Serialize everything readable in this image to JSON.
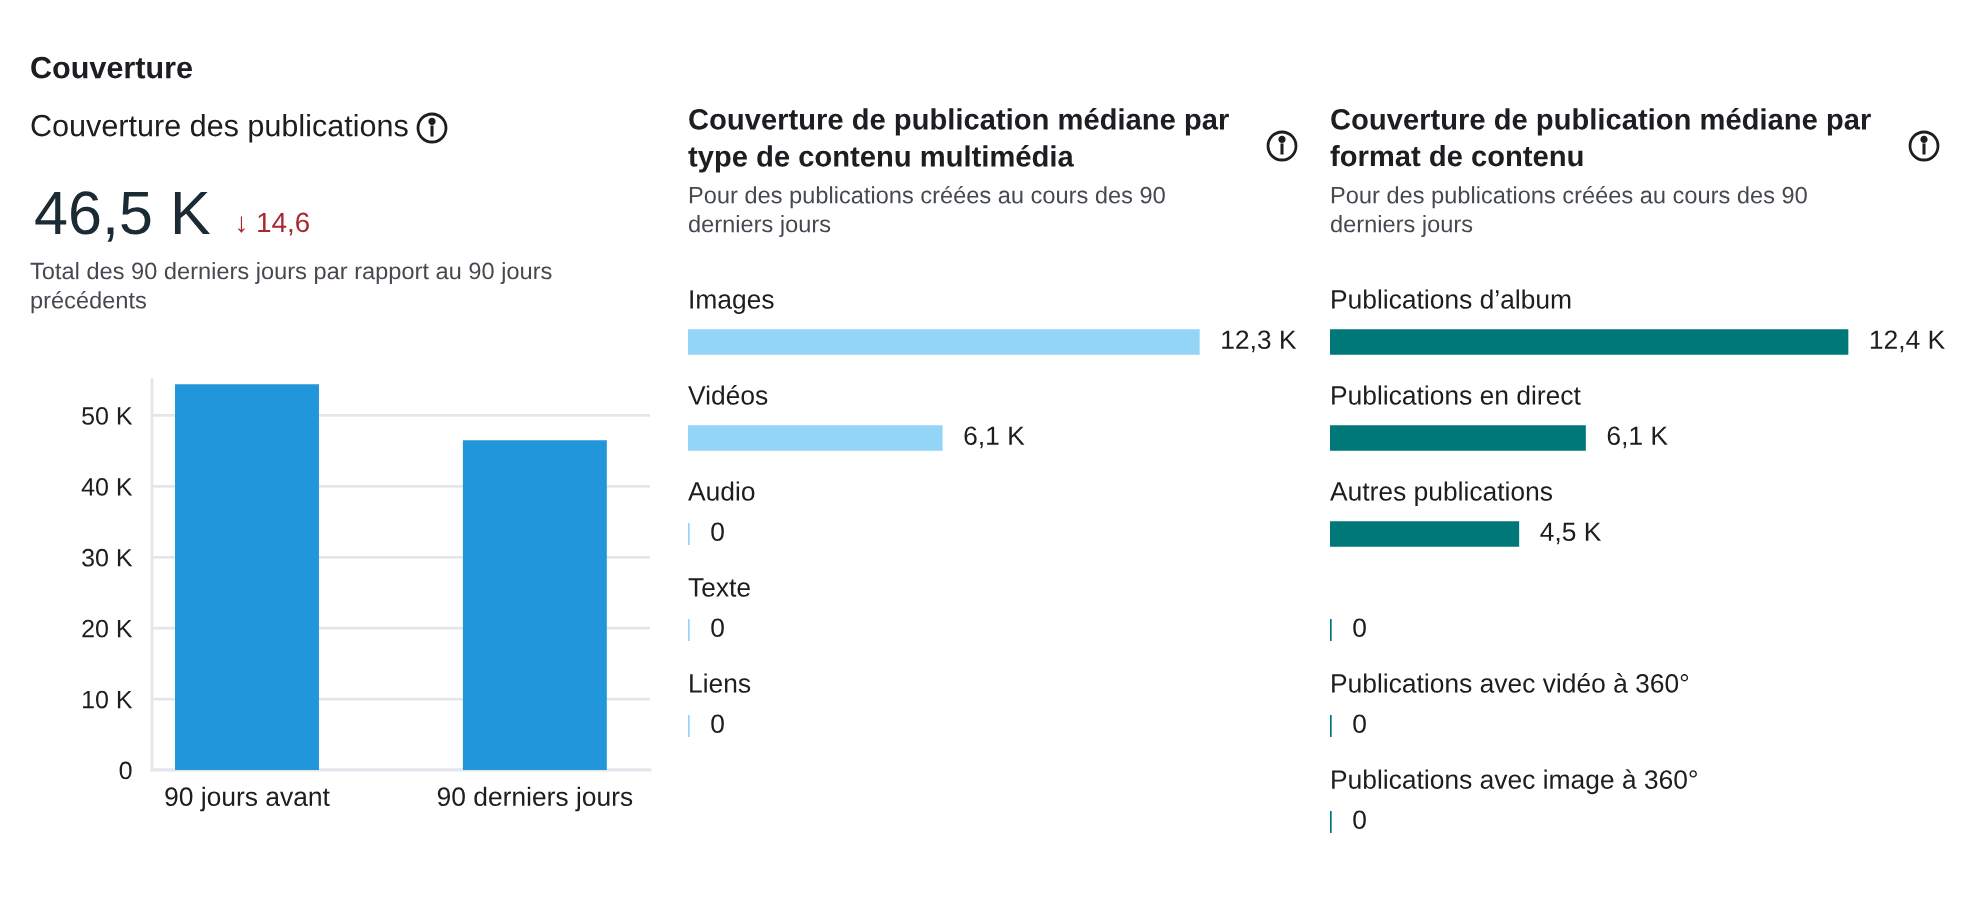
{
  "chart_data": [
    {
      "type": "bar",
      "title": "Couverture des publications",
      "subtitle": "Total des 90 derniers jours par rapport au 90 jours précédents",
      "annotations": [
        "Couverture",
        "46,5 K",
        "↓ 14,6"
      ],
      "categories": [
        "90 jours avant",
        "90 derniers jours"
      ],
      "values": [
        54.4,
        46.5
      ],
      "color": "#2196db",
      "ylim": [
        0,
        55
      ],
      "yticks": [
        0,
        {
          "value": 10,
          "label": "10 K"
        },
        {
          "value": 20,
          "label": "20 K"
        },
        {
          "value": 30,
          "label": "30 K"
        },
        {
          "value": 40,
          "label": "40 K"
        },
        {
          "value": 50,
          "label": "50 K"
        }
      ],
      "grid": "y"
    },
    {
      "type": "bar",
      "orientation": "horizontal",
      "title": "Couverture de publication médiane par type de contenu multimédia",
      "subtitle": "Pour des publications créées au cours des 90 derniers jours",
      "categories": [
        "Images",
        "Vidéos",
        "Audio",
        "Texte",
        "Liens"
      ],
      "values": [
        12.3,
        6.1,
        0,
        0,
        0
      ],
      "value_labels": [
        "12,3 K",
        "6,1 K",
        "0",
        "0",
        "0"
      ],
      "color": "#93d5f6",
      "tick_labels": "y"
    },
    {
      "type": "bar",
      "orientation": "horizontal",
      "title": "Couverture de publication médiane par format de contenu",
      "subtitle": "Pour des publications créées au cours des 90 derniers jours",
      "categories": [
        "Publications d’album",
        "Publications en direct",
        "Autres publications",
        null,
        "Publications avec vidéo à 360°",
        "Publications avec image à 360°"
      ],
      "values": [
        12.4,
        6.1,
        4.5,
        0,
        0,
        0
      ],
      "value_labels": [
        "12,4 K",
        "6,1 K",
        "4,5 K",
        "0",
        "0",
        "0"
      ],
      "color": "#00787a",
      "tick_labels": "y"
    }
  ]
}
